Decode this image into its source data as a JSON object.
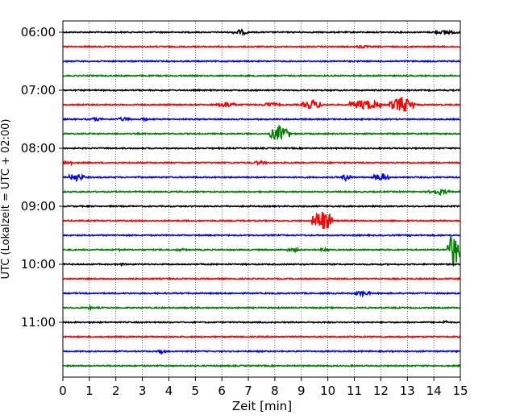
{
  "chart_data": {
    "type": "line",
    "title": "",
    "xlabel": "Zeit  [min]",
    "ylabel": "UTC (Lokalzeit = UTC + 02:00)",
    "xlim": [
      0,
      15
    ],
    "xticks": [
      0,
      1,
      2,
      3,
      4,
      5,
      6,
      7,
      8,
      9,
      10,
      11,
      12,
      13,
      14,
      15
    ],
    "vertical_grid": "dotted",
    "trace_interval_min": 15,
    "trace_colors": [
      "#000000",
      "#ff0000",
      "#0000ff",
      "#008000"
    ],
    "yticks": [
      "06:00",
      "07:00",
      "08:00",
      "09:00",
      "10:00",
      "11:00"
    ],
    "rows": [
      "06:00",
      "06:15",
      "06:30",
      "06:45",
      "07:00",
      "07:15",
      "07:30",
      "07:45",
      "08:00",
      "08:15",
      "08:30",
      "08:45",
      "09:00",
      "09:15",
      "09:30",
      "09:45",
      "10:00",
      "10:15",
      "10:30",
      "10:45",
      "11:00",
      "11:15",
      "11:30",
      "11:45"
    ],
    "events": [
      {
        "row": "06:00",
        "start": 6.4,
        "end": 7.0,
        "amp": 0.3
      },
      {
        "row": "06:00",
        "start": 13.9,
        "end": 15.0,
        "amp": 0.2
      },
      {
        "row": "06:15",
        "start": 11.0,
        "end": 11.6,
        "amp": 0.15
      },
      {
        "row": "07:15",
        "start": 5.8,
        "end": 6.5,
        "amp": 0.35
      },
      {
        "row": "07:15",
        "start": 7.5,
        "end": 8.2,
        "amp": 0.25
      },
      {
        "row": "07:15",
        "start": 9.0,
        "end": 9.8,
        "amp": 0.5
      },
      {
        "row": "07:15",
        "start": 10.8,
        "end": 12.0,
        "amp": 0.55
      },
      {
        "row": "07:15",
        "start": 12.3,
        "end": 13.3,
        "amp": 0.85
      },
      {
        "row": "07:30",
        "start": 1.0,
        "end": 1.5,
        "amp": 0.2
      },
      {
        "row": "07:30",
        "start": 2.0,
        "end": 2.6,
        "amp": 0.2
      },
      {
        "row": "07:30",
        "start": 2.9,
        "end": 3.2,
        "amp": 0.15
      },
      {
        "row": "07:45",
        "start": 7.8,
        "end": 8.6,
        "amp": 0.85
      },
      {
        "row": "08:15",
        "start": 0.0,
        "end": 0.4,
        "amp": 0.3
      },
      {
        "row": "08:15",
        "start": 7.1,
        "end": 7.7,
        "amp": 0.2
      },
      {
        "row": "08:30",
        "start": 0.2,
        "end": 0.8,
        "amp": 0.45
      },
      {
        "row": "08:30",
        "start": 10.5,
        "end": 10.9,
        "amp": 0.4
      },
      {
        "row": "08:30",
        "start": 11.7,
        "end": 12.3,
        "amp": 0.45
      },
      {
        "row": "08:45",
        "start": 13.8,
        "end": 14.6,
        "amp": 0.3
      },
      {
        "row": "09:15",
        "start": 9.4,
        "end": 10.2,
        "amp": 1.15
      },
      {
        "row": "09:30",
        "start": 12.9,
        "end": 13.4,
        "amp": 0.1
      },
      {
        "row": "09:45",
        "start": 2.0,
        "end": 2.3,
        "amp": 0.15
      },
      {
        "row": "09:45",
        "start": 4.2,
        "end": 4.7,
        "amp": 0.15
      },
      {
        "row": "09:45",
        "start": 8.4,
        "end": 9.0,
        "amp": 0.2
      },
      {
        "row": "09:45",
        "start": 9.7,
        "end": 10.1,
        "amp": 0.2
      },
      {
        "row": "09:45",
        "start": 14.5,
        "end": 15.0,
        "amp": 1.9
      },
      {
        "row": "10:00",
        "start": 2.0,
        "end": 2.4,
        "amp": 0.15
      },
      {
        "row": "10:30",
        "start": 11.0,
        "end": 11.6,
        "amp": 0.3
      },
      {
        "row": "10:45",
        "start": 0.9,
        "end": 1.1,
        "amp": 0.2
      },
      {
        "row": "11:00",
        "start": 14.3,
        "end": 14.6,
        "amp": 0.2
      },
      {
        "row": "11:30",
        "start": 3.6,
        "end": 3.9,
        "amp": 0.25
      }
    ]
  }
}
